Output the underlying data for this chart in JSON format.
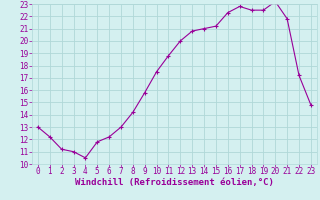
{
  "x": [
    0,
    1,
    2,
    3,
    4,
    5,
    6,
    7,
    8,
    9,
    10,
    11,
    12,
    13,
    14,
    15,
    16,
    17,
    18,
    19,
    20,
    21,
    22,
    23
  ],
  "y": [
    13.0,
    12.2,
    11.2,
    11.0,
    10.5,
    11.8,
    12.2,
    13.0,
    14.2,
    15.8,
    17.5,
    18.8,
    20.0,
    20.8,
    21.0,
    21.2,
    22.3,
    22.8,
    22.5,
    22.5,
    23.2,
    21.8,
    17.2,
    14.8
  ],
  "line_color": "#990099",
  "marker": "+",
  "marker_size": 3,
  "bg_color": "#d4f0f0",
  "grid_color": "#b0d8d8",
  "xlabel": "Windchill (Refroidissement éolien,°C)",
  "ylim": [
    10,
    23
  ],
  "xlim": [
    -0.5,
    23.5
  ],
  "yticks": [
    10,
    11,
    12,
    13,
    14,
    15,
    16,
    17,
    18,
    19,
    20,
    21,
    22,
    23
  ],
  "xticks": [
    0,
    1,
    2,
    3,
    4,
    5,
    6,
    7,
    8,
    9,
    10,
    11,
    12,
    13,
    14,
    15,
    16,
    17,
    18,
    19,
    20,
    21,
    22,
    23
  ],
  "tick_color": "#990099",
  "tick_fontsize": 5.5,
  "xlabel_fontsize": 6.5,
  "xlabel_color": "#990099",
  "line_width": 0.8,
  "marker_edge_width": 0.8
}
